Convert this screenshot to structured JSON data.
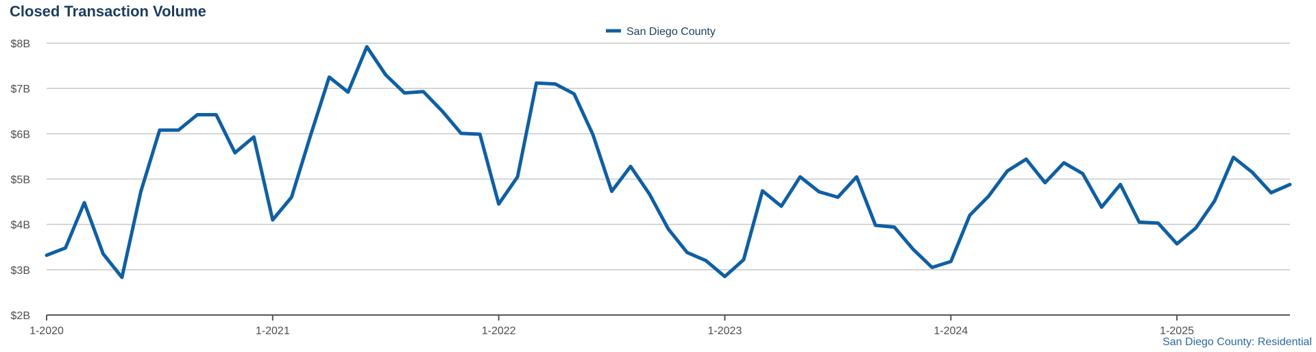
{
  "chart_data": {
    "type": "line",
    "title": "Closed Transaction Volume",
    "footer": "San Diego County: Residential",
    "xlabel": "",
    "ylabel": "",
    "y_tick_labels": [
      "$2B",
      "$3B",
      "$4B",
      "$5B",
      "$6B",
      "$7B",
      "$8B"
    ],
    "y_ticks": [
      2,
      3,
      4,
      5,
      6,
      7,
      8
    ],
    "ylim": [
      2,
      8
    ],
    "x_tick_labels": [
      "1-2020",
      "1-2021",
      "1-2022",
      "1-2023",
      "1-2024",
      "1-2025"
    ],
    "x_ticks": [
      "2020-01",
      "2021-01",
      "2022-01",
      "2023-01",
      "2024-01",
      "2025-01"
    ],
    "xlim": [
      "2020-01",
      "2025-07"
    ],
    "grid": "horizontal",
    "legend": "top-center",
    "colors": {
      "series": "#0f5fa3",
      "grid": "#c8c8c8",
      "axis": "#555555",
      "title": "#1b3d5e"
    },
    "series": [
      {
        "name": "San Diego County",
        "x": [
          "2020-01",
          "2020-02",
          "2020-03",
          "2020-04",
          "2020-05",
          "2020-06",
          "2020-07",
          "2020-08",
          "2020-09",
          "2020-10",
          "2020-11",
          "2020-12",
          "2021-01",
          "2021-02",
          "2021-03",
          "2021-04",
          "2021-05",
          "2021-06",
          "2021-07",
          "2021-08",
          "2021-09",
          "2021-10",
          "2021-11",
          "2021-12",
          "2022-01",
          "2022-02",
          "2022-03",
          "2022-04",
          "2022-05",
          "2022-06",
          "2022-07",
          "2022-08",
          "2022-09",
          "2022-10",
          "2022-11",
          "2022-12",
          "2023-01",
          "2023-02",
          "2023-03",
          "2023-04",
          "2023-05",
          "2023-06",
          "2023-07",
          "2023-08",
          "2023-09",
          "2023-10",
          "2023-11",
          "2023-12",
          "2024-01",
          "2024-02",
          "2024-03",
          "2024-04",
          "2024-05",
          "2024-06",
          "2024-07",
          "2024-08",
          "2024-09",
          "2024-10",
          "2024-11",
          "2024-12",
          "2025-01",
          "2025-02",
          "2025-03",
          "2025-04",
          "2025-05",
          "2025-06",
          "2025-07"
        ],
        "values": [
          3.32,
          3.48,
          4.48,
          3.35,
          2.83,
          4.72,
          6.08,
          6.08,
          6.42,
          6.42,
          5.58,
          5.93,
          4.1,
          4.6,
          5.95,
          7.25,
          6.92,
          7.92,
          7.3,
          6.9,
          6.93,
          6.5,
          6.01,
          5.99,
          4.45,
          5.05,
          7.12,
          7.1,
          6.88,
          5.98,
          4.73,
          5.28,
          4.67,
          3.9,
          3.38,
          3.2,
          2.85,
          3.22,
          4.74,
          4.4,
          5.05,
          4.72,
          4.6,
          5.05,
          3.98,
          3.94,
          3.45,
          3.05,
          3.18,
          4.2,
          4.62,
          5.18,
          5.44,
          4.92,
          5.36,
          5.12,
          4.38,
          4.88,
          4.05,
          4.03,
          3.57,
          3.92,
          4.52,
          5.48,
          5.15,
          4.7,
          4.88
        ]
      }
    ]
  }
}
